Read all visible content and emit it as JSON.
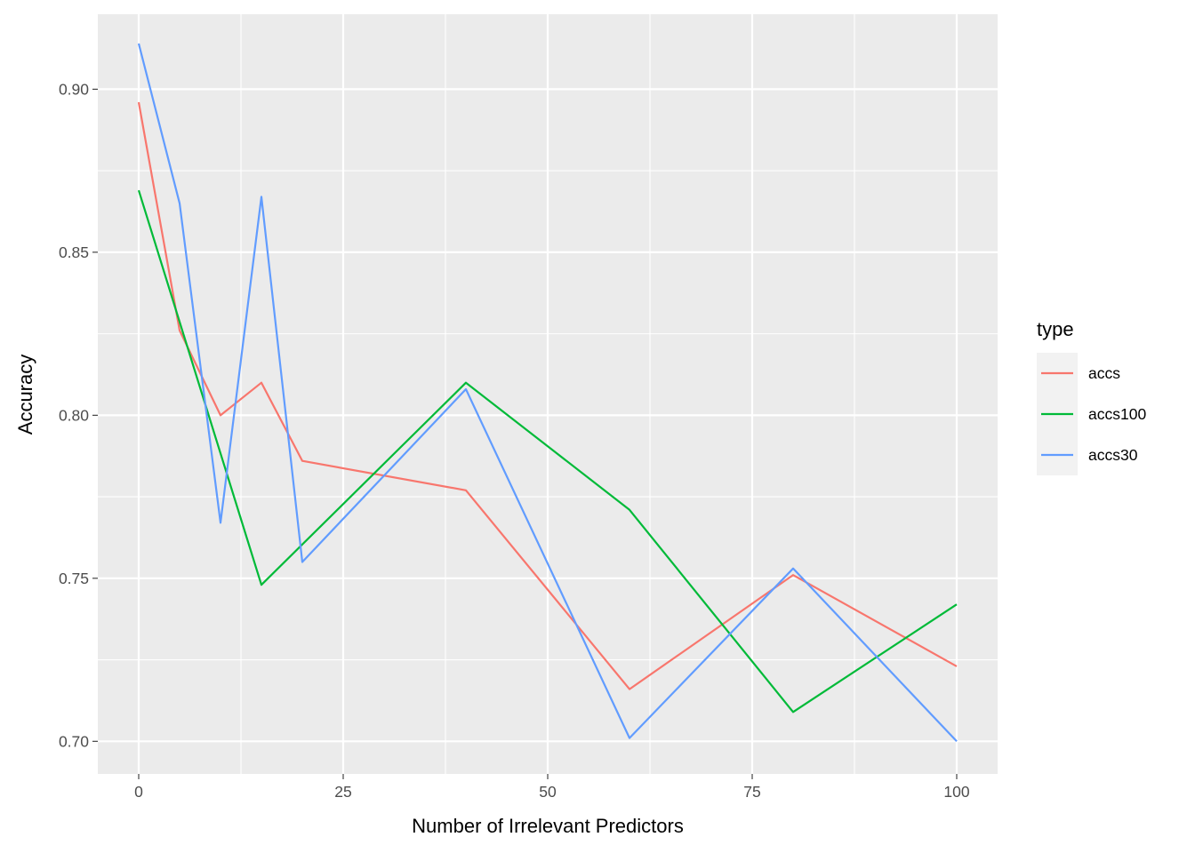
{
  "chart_data": {
    "type": "line",
    "xlabel": "Number of Irrelevant Predictors",
    "ylabel": "Accuracy",
    "xlim": [
      -5,
      105
    ],
    "ylim": [
      0.69,
      0.923
    ],
    "x_ticks": [
      0,
      25,
      50,
      75,
      100
    ],
    "x_tick_labels": [
      "0",
      "25",
      "50",
      "75",
      "100"
    ],
    "y_ticks": [
      0.7,
      0.75,
      0.8,
      0.85,
      0.9
    ],
    "y_tick_labels": [
      "0.70",
      "0.75",
      "0.80",
      "0.85",
      "0.90"
    ],
    "grid": true,
    "panel_background": "#EBEBEB",
    "grid_color": "#FFFFFF",
    "legend": {
      "title": "type",
      "position": "right"
    },
    "series": [
      {
        "name": "accs",
        "color": "#F8766D",
        "x": [
          0,
          5,
          10,
          15,
          20,
          40,
          60,
          80,
          100
        ],
        "y": [
          0.896,
          0.826,
          0.8,
          0.81,
          0.786,
          0.777,
          0.716,
          0.751,
          0.723
        ]
      },
      {
        "name": "accs100",
        "color": "#00BA38",
        "x": [
          0,
          15,
          40,
          60,
          80,
          100
        ],
        "y": [
          0.869,
          0.748,
          0.81,
          0.771,
          0.709,
          0.742
        ]
      },
      {
        "name": "accs30",
        "color": "#619CFF",
        "x": [
          0,
          5,
          10,
          15,
          20,
          40,
          60,
          80,
          100
        ],
        "y": [
          0.914,
          0.865,
          0.767,
          0.867,
          0.755,
          0.808,
          0.701,
          0.753,
          0.7
        ]
      }
    ]
  }
}
